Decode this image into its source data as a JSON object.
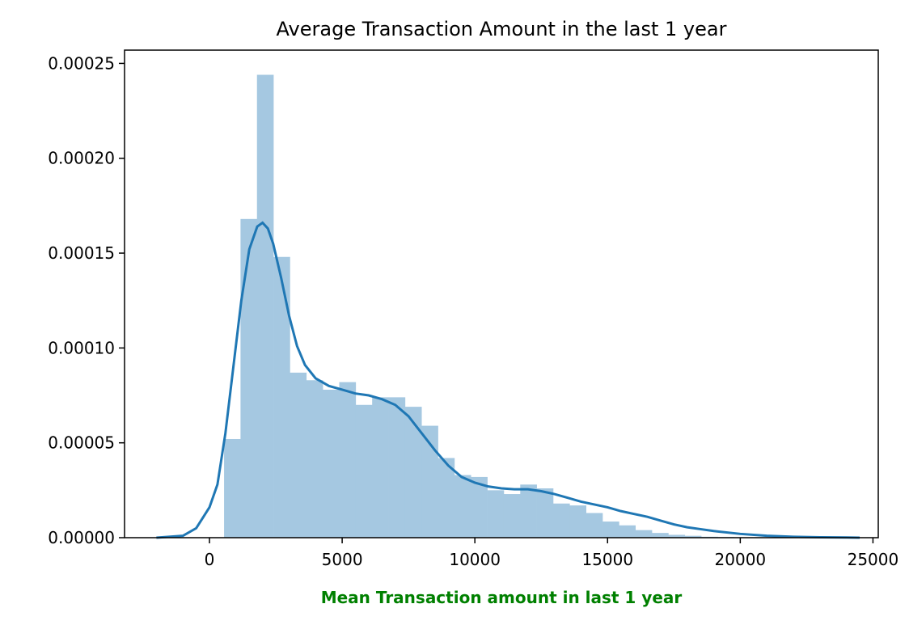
{
  "colors": {
    "bar_fill": "#a5c8e1",
    "kde_line": "#1f77b4",
    "xlabel": "#008000",
    "axis": "#000000"
  },
  "chart_data": {
    "type": "bar",
    "title": "Average Transaction Amount in the last 1 year",
    "xlabel": "Mean Transaction amount in last 1 year",
    "ylabel": "",
    "xlim": [
      -3200,
      25200
    ],
    "ylim": [
      0,
      0.000257
    ],
    "x_ticks": [
      0,
      5000,
      10000,
      15000,
      20000,
      25000
    ],
    "x_tick_labels": [
      "0",
      "5000",
      "10000",
      "15000",
      "20000",
      "25000"
    ],
    "y_ticks": [
      0,
      5e-05,
      0.0001,
      0.00015,
      0.0002,
      0.00025
    ],
    "y_tick_labels": [
      "0.00000",
      "0.00005",
      "0.00010",
      "0.00015",
      "0.00020",
      "0.00025"
    ],
    "histogram": {
      "bin_start": 550,
      "bin_width": 620,
      "values": [
        5.2e-05,
        0.000168,
        0.000244,
        0.000148,
        8.7e-05,
        8.3e-05,
        7.8e-05,
        8.2e-05,
        7e-05,
        7.4e-05,
        7.4e-05,
        6.9e-05,
        5.9e-05,
        4.2e-05,
        3.3e-05,
        3.2e-05,
        2.5e-05,
        2.3e-05,
        2.8e-05,
        2.6e-05,
        1.8e-05,
        1.7e-05,
        1.3e-05,
        8.5e-06,
        6.5e-06,
        4e-06,
        2.5e-06,
        1.5e-06,
        1e-06,
        5e-07,
        3e-07
      ]
    },
    "kde": {
      "x": [
        -2000,
        -1000,
        -500,
        0,
        300,
        600,
        900,
        1200,
        1500,
        1800,
        2000,
        2200,
        2400,
        2700,
        3000,
        3300,
        3600,
        4000,
        4500,
        5000,
        5500,
        6000,
        6500,
        7000,
        7500,
        8000,
        8500,
        9000,
        9500,
        10000,
        10500,
        11000,
        11500,
        12000,
        12500,
        13000,
        13500,
        14000,
        14500,
        15000,
        15500,
        16000,
        16500,
        17000,
        17500,
        18000,
        18500,
        19000,
        20000,
        21000,
        22000,
        23000,
        24000,
        24500
      ],
      "y": [
        0,
        1e-06,
        5e-06,
        1.6e-05,
        2.8e-05,
        5.5e-05,
        9e-05,
        0.000125,
        0.000152,
        0.000164,
        0.000166,
        0.000163,
        0.000155,
        0.000137,
        0.000117,
        0.000101,
        9.1e-05,
        8.4e-05,
        8e-05,
        7.8e-05,
        7.6e-05,
        7.5e-05,
        7.3e-05,
        7e-05,
        6.4e-05,
        5.5e-05,
        4.6e-05,
        3.8e-05,
        3.2e-05,
        2.9e-05,
        2.7e-05,
        2.6e-05,
        2.55e-05,
        2.55e-05,
        2.45e-05,
        2.3e-05,
        2.1e-05,
        1.9e-05,
        1.75e-05,
        1.6e-05,
        1.4e-05,
        1.25e-05,
        1.1e-05,
        9e-06,
        7e-06,
        5.5e-06,
        4.5e-06,
        3.5e-06,
        2e-06,
        1e-06,
        5e-07,
        2e-07,
        1e-07,
        0
      ]
    }
  }
}
